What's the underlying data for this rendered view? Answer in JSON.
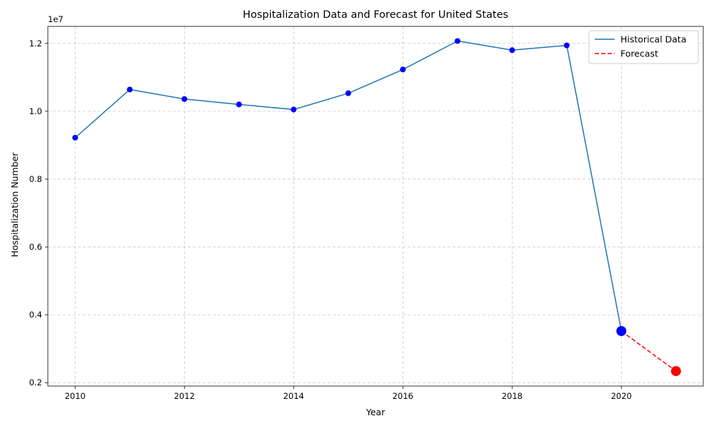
{
  "chart_data": {
    "type": "line",
    "title": "Hospitalization Data and Forecast for United States",
    "xlabel": "Year",
    "ylabel": "Hospitalization Number",
    "y_offset_label": "1e7",
    "xlim": [
      2009.5,
      2021.5
    ],
    "ylim": [
      0.19,
      1.25
    ],
    "y_scale_factor": 10000000,
    "x_ticks": [
      2010,
      2012,
      2014,
      2016,
      2018,
      2020
    ],
    "x_tick_labels": [
      "2010",
      "2012",
      "2014",
      "2016",
      "2018",
      "2020"
    ],
    "y_ticks": [
      0.2,
      0.4,
      0.6,
      0.8,
      1.0,
      1.2
    ],
    "y_tick_labels": [
      "0.2",
      "0.4",
      "0.6",
      "0.8",
      "1.0",
      "1.2"
    ],
    "grid": true,
    "legend_position": "top-right",
    "series": [
      {
        "name": "Historical Data",
        "style": "solid",
        "color": "#1f77b4",
        "marker_color": "#0000ff",
        "x": [
          2010,
          2011,
          2012,
          2013,
          2014,
          2015,
          2016,
          2017,
          2018,
          2019,
          2020
        ],
        "y": [
          0.922,
          1.064,
          1.036,
          1.02,
          1.005,
          1.053,
          1.123,
          1.207,
          1.18,
          1.194,
          0.352
        ]
      },
      {
        "name": "Forecast",
        "style": "dashed",
        "color": "#ff0000",
        "marker_color": "#ff0000",
        "x": [
          2020,
          2021
        ],
        "y": [
          0.352,
          0.234
        ]
      }
    ],
    "highlight_points": [
      {
        "x": 2020,
        "y": 0.352,
        "color": "#0000ff"
      },
      {
        "x": 2021,
        "y": 0.234,
        "color": "#ff0000"
      }
    ]
  }
}
